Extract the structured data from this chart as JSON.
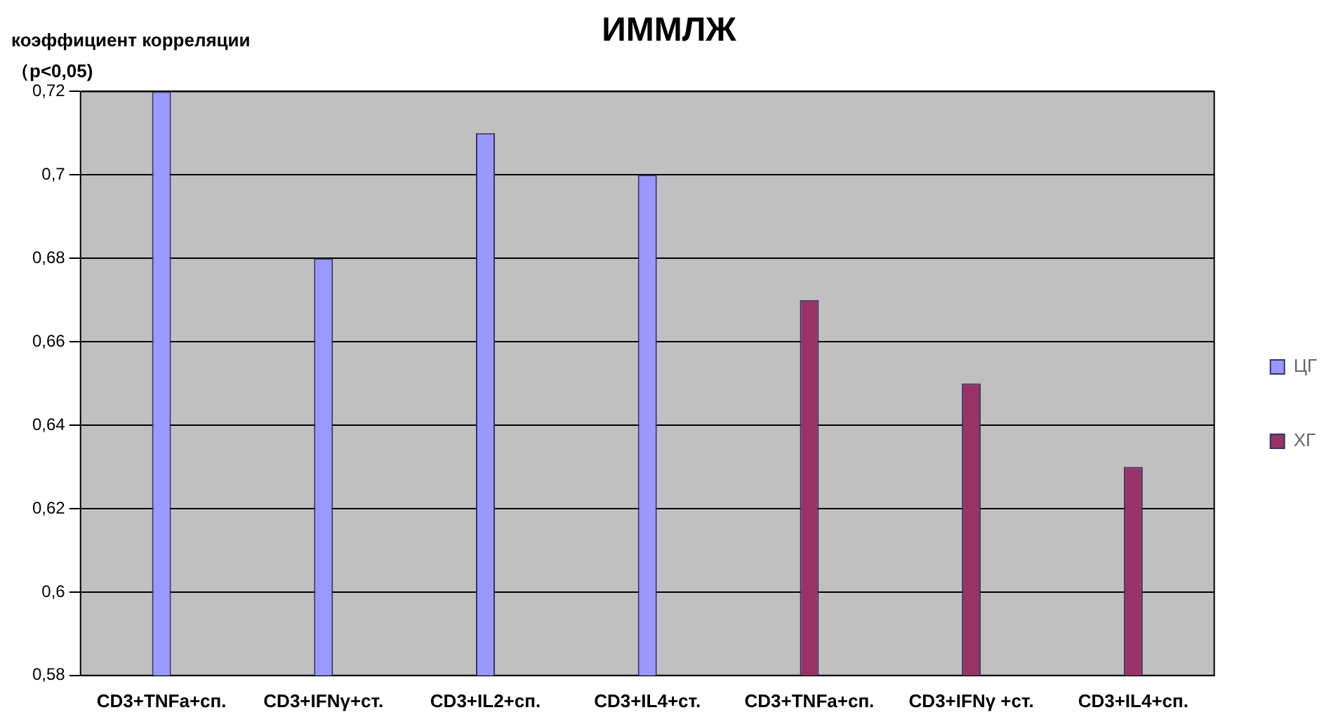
{
  "chart_data": {
    "type": "bar",
    "title": "ИММЛЖ",
    "ylabel": "коэффициент корреляции（p<0,05)",
    "categories": [
      "CD3+TNFa+сп.",
      "CD3+IFNγ+ст.",
      "CD3+IL2+сп.",
      "CD3+IL4+ст.",
      "CD3+TNFa+сп.",
      "CD3+IFNγ +ст.",
      "CD3+IL4+сп."
    ],
    "series": [
      {
        "name": "ЦГ",
        "color": "#9999ff",
        "values": [
          0.72,
          0.68,
          0.71,
          0.7,
          null,
          null,
          null
        ]
      },
      {
        "name": "ХГ",
        "color": "#993366",
        "values": [
          null,
          null,
          null,
          null,
          0.67,
          0.65,
          0.63
        ]
      }
    ],
    "ylim": [
      0.58,
      0.72
    ],
    "yticks": [
      {
        "value": 0.58,
        "label": "0,58"
      },
      {
        "value": 0.6,
        "label": "0,6"
      },
      {
        "value": 0.62,
        "label": "0,62"
      },
      {
        "value": 0.64,
        "label": "0,64"
      },
      {
        "value": 0.66,
        "label": "0,66"
      },
      {
        "value": 0.68,
        "label": "0,68"
      },
      {
        "value": 0.7,
        "label": "0,7"
      },
      {
        "value": 0.72,
        "label": "0,72"
      }
    ],
    "grid": "y",
    "legend": "right"
  }
}
